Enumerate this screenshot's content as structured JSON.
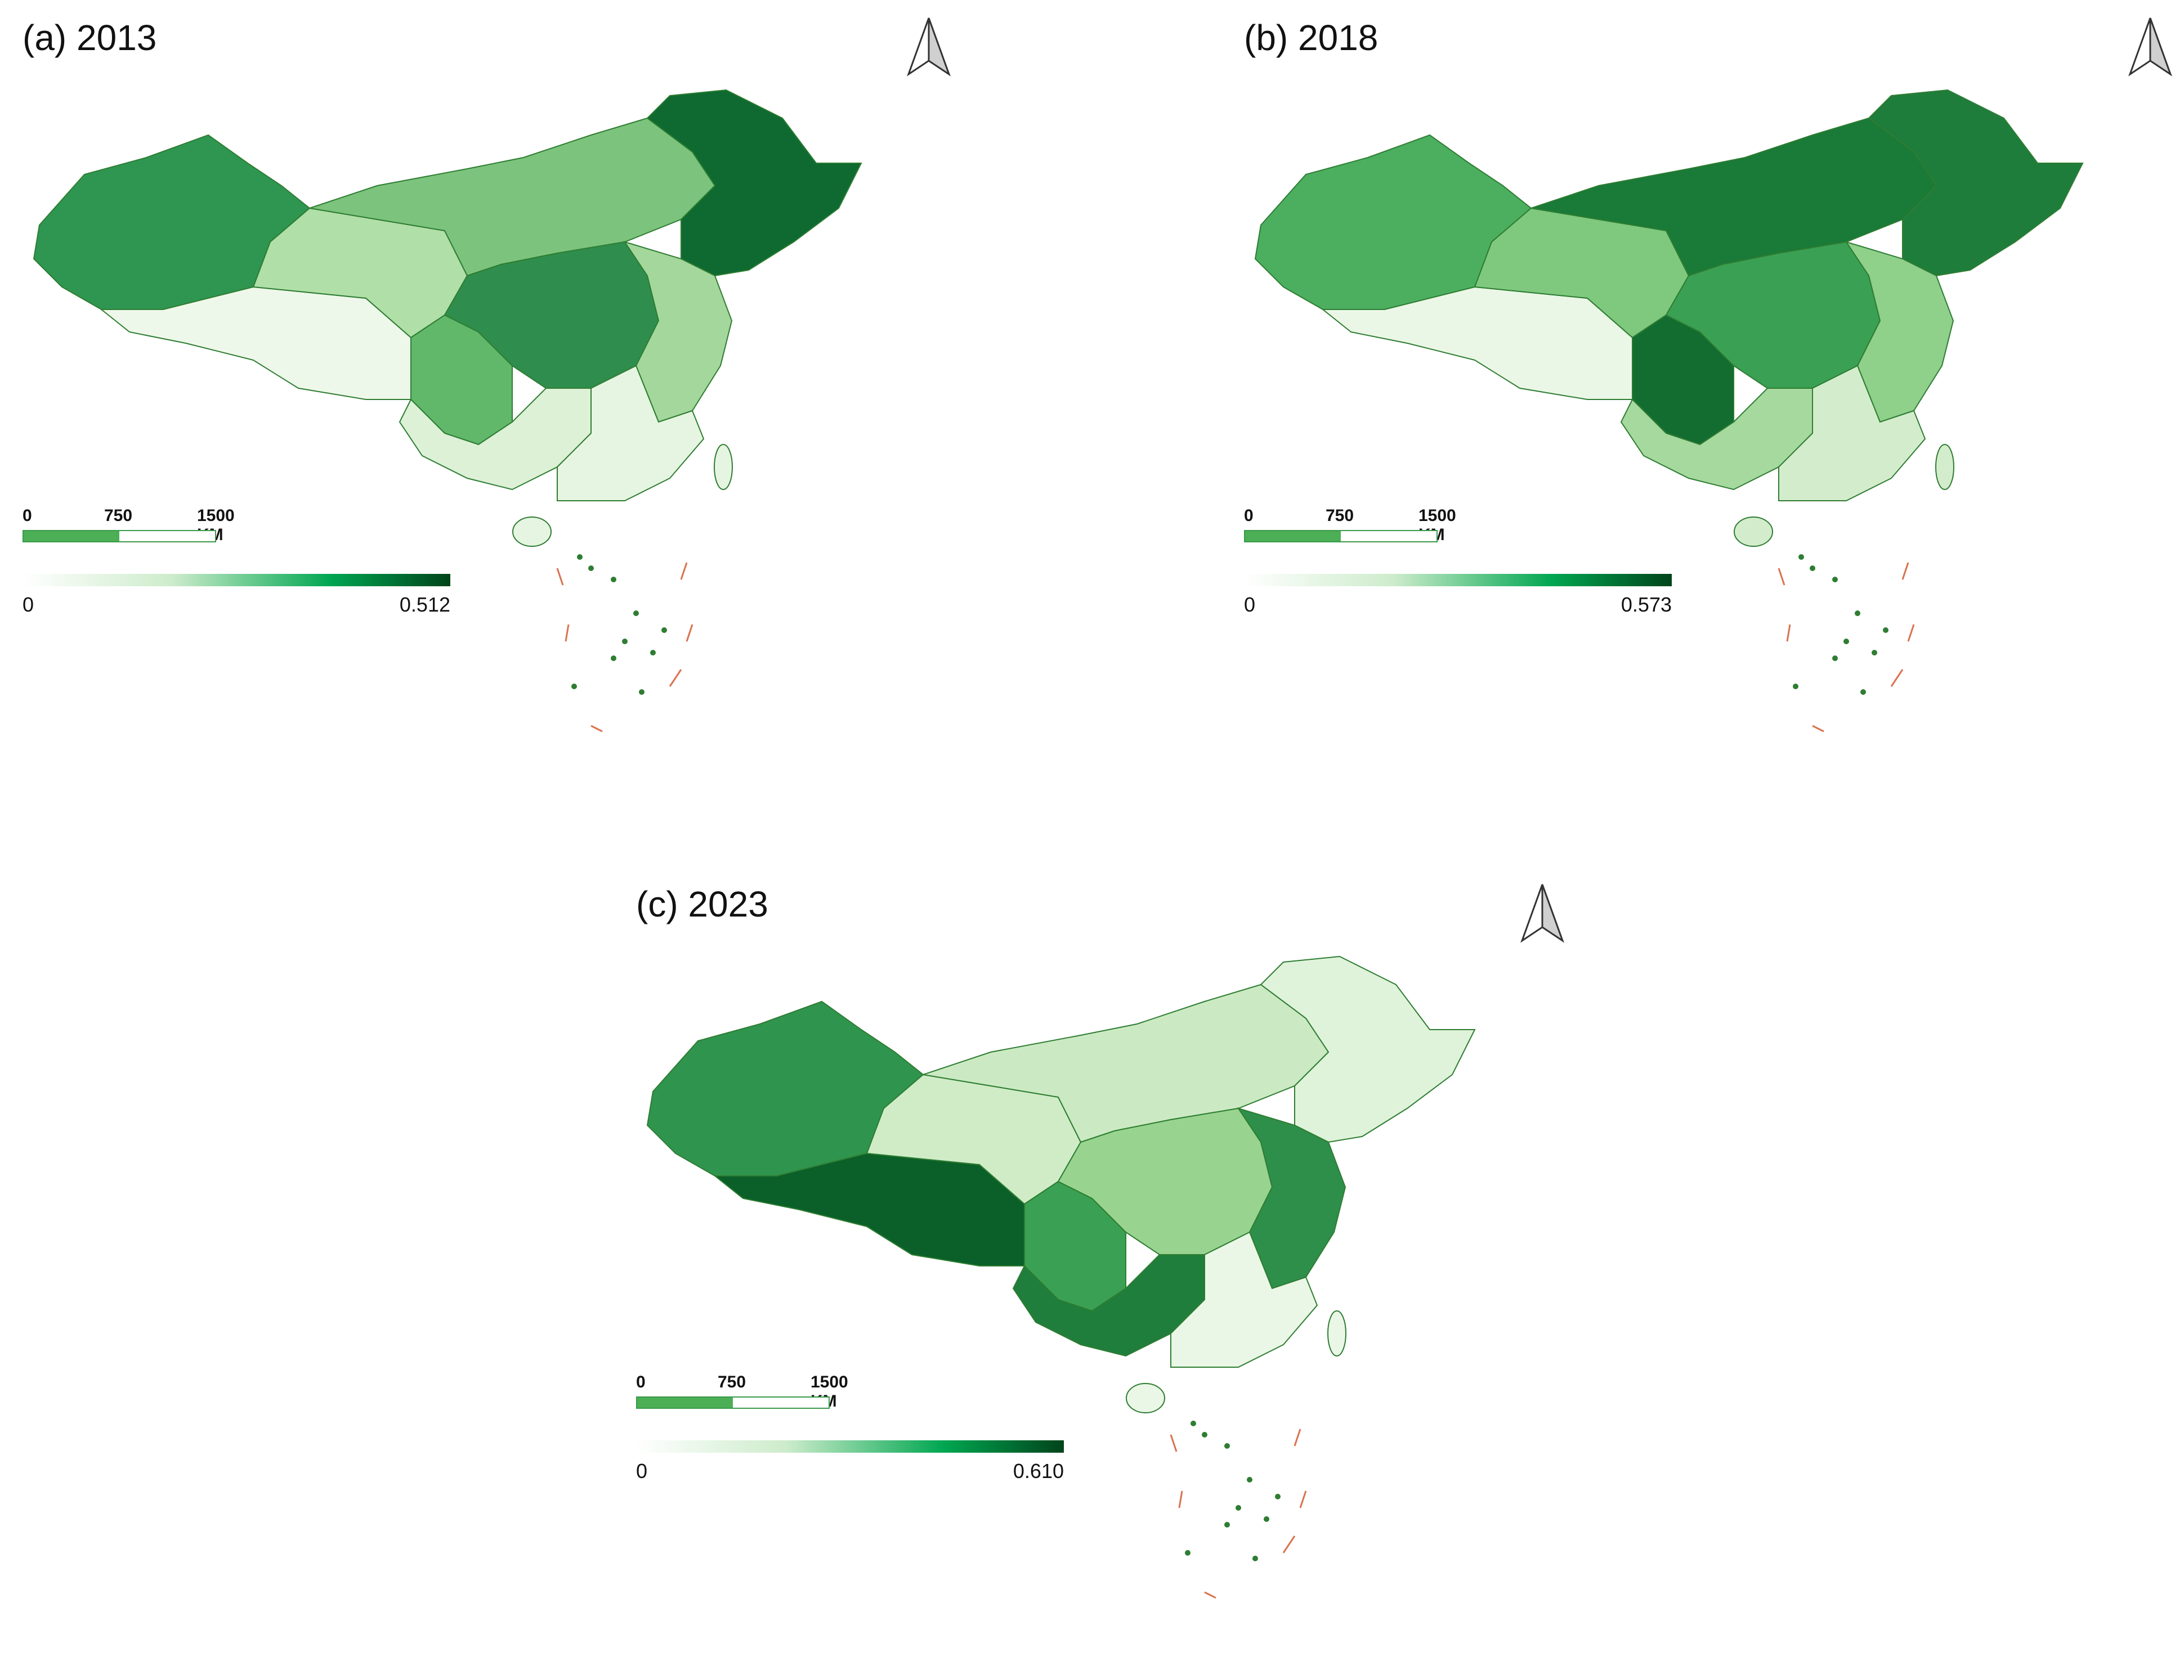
{
  "panels": [
    {
      "title": "(a) 2013",
      "scale": {
        "zero": "0",
        "mid": "750",
        "end": "1500 KM"
      },
      "legend": {
        "min": "0",
        "max": "0.512"
      },
      "colors": {
        "west": "#2e9650",
        "tibet": "#eef8ea",
        "qinghai": "#b0dfa8",
        "northeast": "#0e6a30",
        "inner": "#7cc47d",
        "south": "#dcf1d6",
        "sichuan": "#61b86b",
        "central": "#2f8e4d",
        "east": "#a4d79c",
        "coast": "#e6f5e1"
      }
    },
    {
      "title": "(b) 2018",
      "scale": {
        "zero": "0",
        "mid": "750",
        "end": "1500 KM"
      },
      "legend": {
        "min": "0",
        "max": "0.573"
      },
      "colors": {
        "west": "#4caf60",
        "tibet": "#eaf7e6",
        "qinghai": "#7ec97e",
        "northeast": "#1f7d3c",
        "inner": "#1a7a38",
        "south": "#a6d99e",
        "sichuan": "#136d31",
        "central": "#3aa054",
        "east": "#8fd08b",
        "coast": "#d3edcc"
      }
    },
    {
      "title": "(c) 2023",
      "scale": {
        "zero": "0",
        "mid": "750",
        "end": "1500 KM"
      },
      "legend": {
        "min": "0",
        "max": "0.610"
      },
      "colors": {
        "west": "#2f944e",
        "tibet": "#0b6029",
        "qinghai": "#cfecc7",
        "northeast": "#dff3da",
        "inner": "#cbeac3",
        "south": "#1f7e3b",
        "sichuan": "#3aa054",
        "central": "#98d490",
        "east": "#2e8f4b",
        "coast": "#eaf7e6"
      }
    }
  ],
  "legend_colors": {
    "low": "#ffffff",
    "mid": "#00a651",
    "high": "#00441b"
  },
  "border_color": "#2e7d32",
  "dash_color": "#d9734f"
}
